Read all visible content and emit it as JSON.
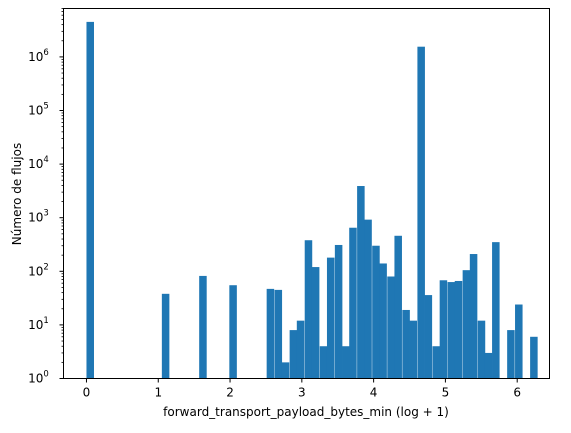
{
  "chart_data": {
    "type": "bar",
    "subtype": "histogram",
    "title": "",
    "xlabel": "forward_transport_payload_bytes_min (log + 1)",
    "ylabel": "Número de flujos",
    "xlim": [
      -0.32,
      6.45
    ],
    "ylim": [
      1,
      8000000
    ],
    "yscale": "log",
    "grid": false,
    "bar_color": "#1f77b4",
    "bin_width": 0.1047,
    "x_ticks": [
      0,
      1,
      2,
      3,
      4,
      5,
      6
    ],
    "x_tick_labels": [
      "0",
      "1",
      "2",
      "3",
      "4",
      "5",
      "6"
    ],
    "y_ticks": [
      1,
      10,
      100,
      1000,
      10000,
      100000,
      1000000
    ],
    "y_tick_labels": [
      "10^0",
      "10^1",
      "10^2",
      "10^3",
      "10^4",
      "10^5",
      "10^6"
    ],
    "bins": [
      {
        "x": 0.0,
        "count": 4500000
      },
      {
        "x": 1.05,
        "count": 38
      },
      {
        "x": 1.57,
        "count": 82
      },
      {
        "x": 1.99,
        "count": 55
      },
      {
        "x": 2.51,
        "count": 47
      },
      {
        "x": 2.62,
        "count": 45
      },
      {
        "x": 2.72,
        "count": 2
      },
      {
        "x": 2.83,
        "count": 8
      },
      {
        "x": 2.93,
        "count": 12
      },
      {
        "x": 3.04,
        "count": 380
      },
      {
        "x": 3.14,
        "count": 120
      },
      {
        "x": 3.25,
        "count": 4
      },
      {
        "x": 3.35,
        "count": 180
      },
      {
        "x": 3.46,
        "count": 310
      },
      {
        "x": 3.56,
        "count": 4
      },
      {
        "x": 3.66,
        "count": 650
      },
      {
        "x": 3.77,
        "count": 3900
      },
      {
        "x": 3.87,
        "count": 920
      },
      {
        "x": 3.98,
        "count": 300
      },
      {
        "x": 4.08,
        "count": 140
      },
      {
        "x": 4.19,
        "count": 80
      },
      {
        "x": 4.29,
        "count": 460
      },
      {
        "x": 4.4,
        "count": 19
      },
      {
        "x": 4.5,
        "count": 12
      },
      {
        "x": 4.61,
        "count": 1550000
      },
      {
        "x": 4.71,
        "count": 36
      },
      {
        "x": 4.82,
        "count": 4
      },
      {
        "x": 4.92,
        "count": 68
      },
      {
        "x": 5.03,
        "count": 63
      },
      {
        "x": 5.13,
        "count": 66
      },
      {
        "x": 5.24,
        "count": 105
      },
      {
        "x": 5.34,
        "count": 210
      },
      {
        "x": 5.45,
        "count": 12
      },
      {
        "x": 5.55,
        "count": 3
      },
      {
        "x": 5.65,
        "count": 350
      },
      {
        "x": 5.86,
        "count": 8
      },
      {
        "x": 5.97,
        "count": 24
      },
      {
        "x": 6.18,
        "count": 6
      }
    ]
  }
}
